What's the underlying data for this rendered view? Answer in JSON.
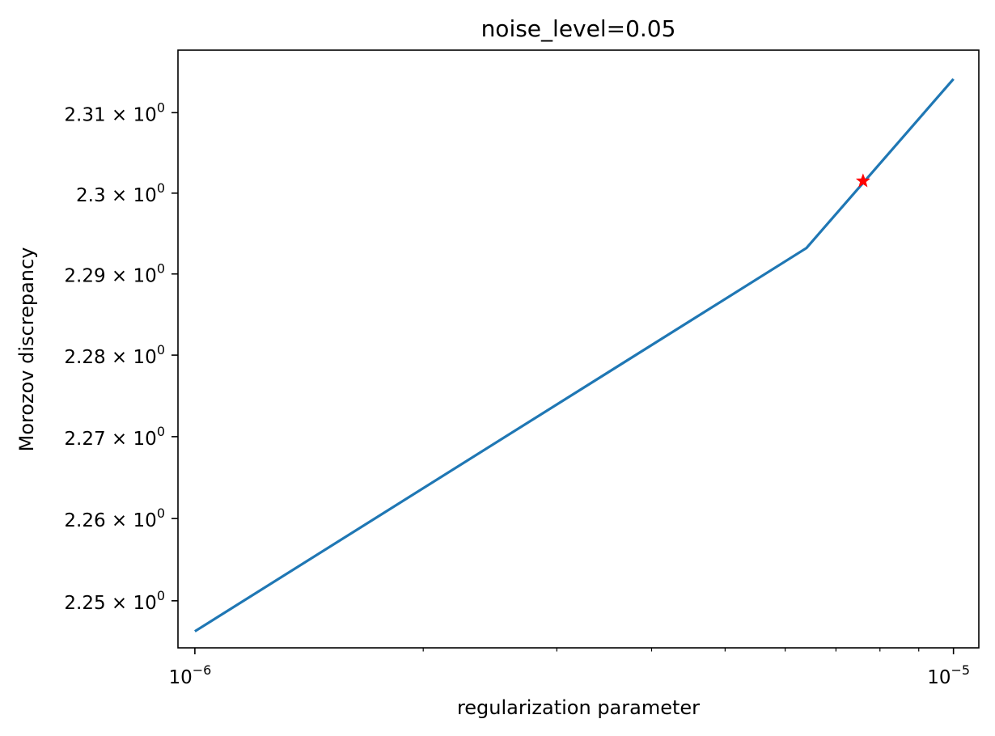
{
  "chart_data": {
    "type": "line",
    "title": "noise_level=0.05",
    "xlabel": "regularization parameter",
    "ylabel": "Morozov discrepancy",
    "xscale": "log",
    "yscale": "log",
    "xlim": [
      9.5e-07,
      1.08e-05
    ],
    "ylim": [
      2.2443,
      2.3178
    ],
    "x_ticks": [
      {
        "value": 1e-06,
        "base": "10",
        "exp": "−6"
      },
      {
        "value": 1e-05,
        "base": "10",
        "exp": "−5"
      }
    ],
    "y_ticks": [
      {
        "value": 2.25,
        "mantissa": "2.25",
        "times": "×",
        "base": "10",
        "exp": "0"
      },
      {
        "value": 2.26,
        "mantissa": "2.26",
        "times": "×",
        "base": "10",
        "exp": "0"
      },
      {
        "value": 2.27,
        "mantissa": "2.27",
        "times": "×",
        "base": "10",
        "exp": "0"
      },
      {
        "value": 2.28,
        "mantissa": "2.28",
        "times": "×",
        "base": "10",
        "exp": "0"
      },
      {
        "value": 2.29,
        "mantissa": "2.29",
        "times": "×",
        "base": "10",
        "exp": "0"
      },
      {
        "value": 2.3,
        "mantissa": "2.3",
        "times": "×",
        "base": "10",
        "exp": "0"
      },
      {
        "value": 2.31,
        "mantissa": "2.31",
        "times": "×",
        "base": "10",
        "exp": "0"
      }
    ],
    "series": [
      {
        "color": "#1f77b4",
        "x": [
          1e-06,
          6.4e-06,
          1e-05
        ],
        "y": [
          2.2463,
          2.2932,
          2.3142
        ]
      }
    ],
    "marker": {
      "x": 7.6e-06,
      "y": 2.3015,
      "symbol": "star",
      "color": "#ff0000"
    },
    "grid": false,
    "legend": "none"
  }
}
